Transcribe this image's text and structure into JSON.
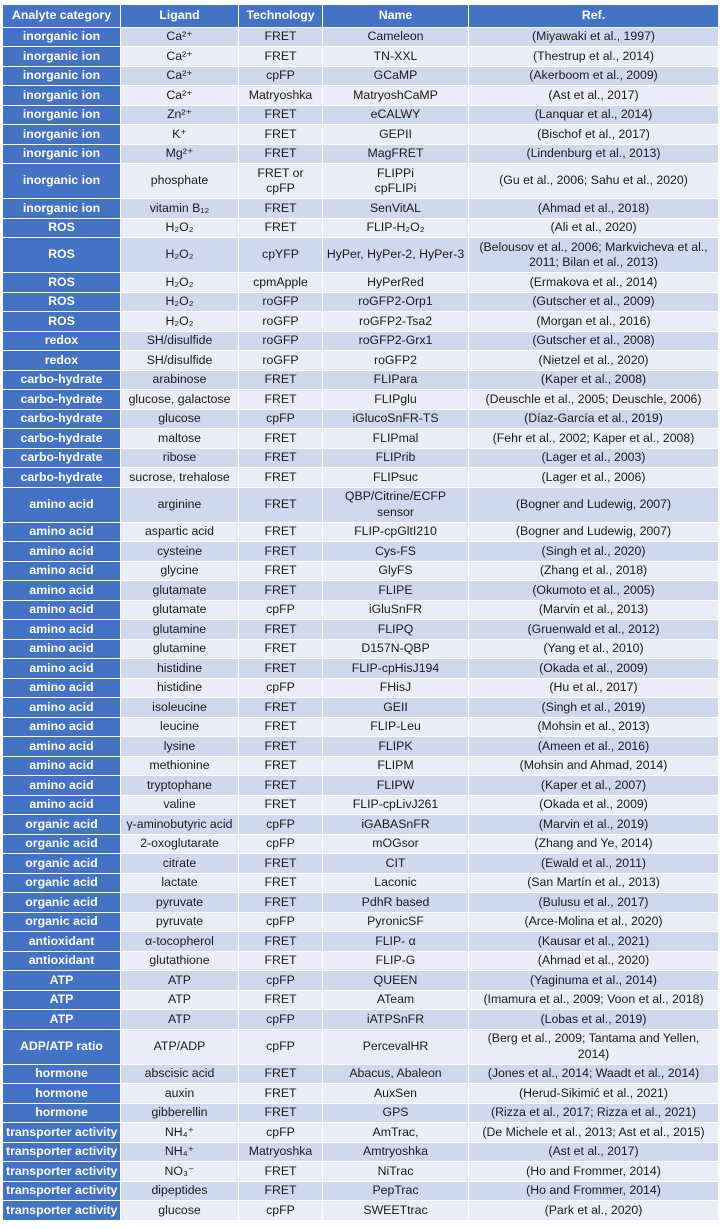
{
  "table": {
    "columns": [
      "Analyte category",
      "Ligand",
      "Technology",
      "Name",
      "Ref."
    ],
    "rows": [
      [
        "inorganic ion",
        "Ca²⁺",
        "FRET",
        "Cameleon",
        "(Miyawaki et al., 1997)"
      ],
      [
        "inorganic ion",
        "Ca²⁺",
        "FRET",
        "TN-XXL",
        "(Thestrup et al., 2014)"
      ],
      [
        "inorganic ion",
        "Ca²⁺",
        "cpFP",
        "GCaMP",
        "(Akerboom et al., 2009)"
      ],
      [
        "inorganic ion",
        "Ca²⁺",
        "Matryoshka",
        "MatryoshCaMP",
        "(Ast et al., 2017)"
      ],
      [
        "inorganic ion",
        "Zn²⁺",
        "FRET",
        "eCALWY",
        "(Lanquar et al., 2014)"
      ],
      [
        "inorganic ion",
        "K⁺",
        "FRET",
        "GEPII",
        "(Bischof et al., 2017)"
      ],
      [
        "inorganic ion",
        "Mg²⁺",
        "FRET",
        "MagFRET",
        "(Lindenburg et al., 2013)"
      ],
      [
        "inorganic ion",
        "phosphate",
        "FRET or cpFP",
        "FLIPPi\ncpFLIPi",
        "(Gu et al., 2006; Sahu et al., 2020)"
      ],
      [
        "inorganic ion",
        "vitamin B₁₂",
        "FRET",
        "SenVitAL",
        "(Ahmad et al., 2018)"
      ],
      [
        "ROS",
        "H₂O₂",
        "FRET",
        "FLIP-H₂O₂",
        "(Ali et al., 2020)"
      ],
      [
        "ROS",
        "H₂O₂",
        "cpYFP",
        "HyPer, HyPer-2, HyPer-3",
        "(Belousov et al., 2006; Markvicheva et al., 2011; Bilan et al., 2013)"
      ],
      [
        "ROS",
        "H₂O₂",
        "cpmApple",
        "HyPerRed",
        "(Ermakova et al., 2014)"
      ],
      [
        "ROS",
        "H₂O₂",
        "roGFP",
        "roGFP2-Orp1",
        "(Gutscher et al., 2009)"
      ],
      [
        "ROS",
        "H₂O₂",
        "roGFP",
        "roGFP2-Tsa2",
        "(Morgan et al., 2016)"
      ],
      [
        "redox",
        "SH/disulfide",
        "roGFP",
        "roGFP2-Grx1",
        "(Gutscher et al., 2008)"
      ],
      [
        "redox",
        "SH/disulfide",
        "roGFP",
        "roGFP2",
        "(Nietzel et al., 2020)"
      ],
      [
        "carbo-hydrate",
        "arabinose",
        "FRET",
        "FLIPara",
        "(Kaper et al., 2008)"
      ],
      [
        "carbo-hydrate",
        "glucose, galactose",
        "FRET",
        "FLIPglu",
        "(Deuschle et al., 2005; Deuschle, 2006)"
      ],
      [
        "carbo-hydrate",
        "glucose",
        "cpFP",
        "iGlucoSnFR-TS",
        "(Díaz-García et al., 2019)"
      ],
      [
        "carbo-hydrate",
        "maltose",
        "FRET",
        "FLIPmal",
        "(Fehr et al., 2002; Kaper et al., 2008)"
      ],
      [
        "carbo-hydrate",
        "ribose",
        "FRET",
        "FLIPrib",
        "(Lager et al., 2003)"
      ],
      [
        "carbo-hydrate",
        "sucrose, trehalose",
        "FRET",
        "FLIPsuc",
        "(Lager et al., 2006)"
      ],
      [
        "amino acid",
        "arginine",
        "FRET",
        "QBP/Citrine/ECFP sensor",
        "(Bogner and Ludewig, 2007)"
      ],
      [
        "amino acid",
        "aspartic acid",
        "FRET",
        "FLIP-cpGltI210",
        "(Bogner and Ludewig, 2007)"
      ],
      [
        "amino acid",
        "cysteine",
        "FRET",
        "Cys-FS",
        "(Singh et al., 2020)"
      ],
      [
        "amino acid",
        "glycine",
        "FRET",
        "GlyFS",
        "(Zhang et al., 2018)"
      ],
      [
        "amino acid",
        "glutamate",
        "FRET",
        "FLIPE",
        "(Okumoto et al., 2005)"
      ],
      [
        "amino acid",
        "glutamate",
        "cpFP",
        "iGluSnFR",
        "(Marvin et al., 2013)"
      ],
      [
        "amino acid",
        "glutamine",
        "FRET",
        "FLIPQ",
        "(Gruenwald et al., 2012)"
      ],
      [
        "amino acid",
        "glutamine",
        "FRET",
        "D157N-QBP",
        "(Yang et al., 2010)"
      ],
      [
        "amino acid",
        "histidine",
        "FRET",
        "FLIP-cpHisJ194",
        "(Okada et al., 2009)"
      ],
      [
        "amino acid",
        "histidine",
        "cpFP",
        "FHisJ",
        "(Hu et al., 2017)"
      ],
      [
        "amino acid",
        "isoleucine",
        "FRET",
        "GEII",
        "(Singh et al., 2019)"
      ],
      [
        "amino acid",
        "leucine",
        "FRET",
        "FLIP-Leu",
        "(Mohsin et al., 2013)"
      ],
      [
        "amino acid",
        "lysine",
        "FRET",
        "FLIPK",
        "(Ameen et al., 2016)"
      ],
      [
        "amino acid",
        "methionine",
        "FRET",
        "FLIPM",
        "(Mohsin and Ahmad, 2014)"
      ],
      [
        "amino acid",
        "tryptophane",
        "FRET",
        "FLIPW",
        "(Kaper et al., 2007)"
      ],
      [
        "amino acid",
        "valine",
        "FRET",
        "FLIP-cpLivJ261",
        "(Okada et al., 2009)"
      ],
      [
        "organic acid",
        "γ-aminobutyric acid",
        "cpFP",
        "iGABASnFR",
        "(Marvin et al., 2019)"
      ],
      [
        "organic acid",
        "2-oxoglutarate",
        "cpFP",
        "mOGsor",
        "(Zhang and Ye, 2014)"
      ],
      [
        "organic acid",
        "citrate",
        "FRET",
        "CIT",
        "(Ewald et al., 2011)"
      ],
      [
        "organic acid",
        "lactate",
        "FRET",
        "Laconic",
        "(San Martín et al., 2013)"
      ],
      [
        "organic acid",
        "pyruvate",
        "FRET",
        "PdhR based",
        "(Bulusu et al., 2017)"
      ],
      [
        "organic acid",
        "pyruvate",
        "cpFP",
        "PyronicSF",
        "(Arce-Molina et al., 2020)"
      ],
      [
        "antioxidant",
        "α-tocopherol",
        "FRET",
        "FLIP- α",
        "(Kausar et al., 2021)"
      ],
      [
        "antioxidant",
        "glutathione",
        "FRET",
        "FLIP-G",
        "(Ahmad et al., 2020)"
      ],
      [
        "ATP",
        "ATP",
        "cpFP",
        "QUEEN",
        "(Yaginuma et al., 2014)"
      ],
      [
        "ATP",
        "ATP",
        "FRET",
        "ATeam",
        "(Imamura et al., 2009; Voon et al., 2018)"
      ],
      [
        "ATP",
        "ATP",
        "cpFP",
        "iATPSnFR",
        "(Lobas et al., 2019)"
      ],
      [
        "ADP/ATP ratio",
        "ATP/ADP",
        "cpFP",
        "PercevalHR",
        "(Berg et al., 2009; Tantama and Yellen, 2014)"
      ],
      [
        "hormone",
        "abscisic acid",
        "FRET",
        "Abacus, Abaleon",
        "(Jones et al., 2014; Waadt et al., 2014)"
      ],
      [
        "hormone",
        "auxin",
        "FRET",
        "AuxSen",
        "(Herud-Sikimić et al., 2021)"
      ],
      [
        "hormone",
        "gibberellin",
        "FRET",
        "GPS",
        "(Rizza et al., 2017; Rizza et al., 2021)"
      ],
      [
        "transporter activity",
        "NH₄⁺",
        "cpFP",
        "AmTrac,",
        "(De Michele et al., 2013; Ast et al., 2015)"
      ],
      [
        "transporter activity",
        "NH₄⁺",
        "Matryoshka",
        "Amtryoshka",
        "(Ast et al., 2017)"
      ],
      [
        "transporter activity",
        "NO₃⁻",
        "FRET",
        "NiTrac",
        "(Ho and Frommer, 2014)"
      ],
      [
        "transporter activity",
        "dipeptides",
        "FRET",
        "PepTrac",
        "(Ho and Frommer, 2014)"
      ],
      [
        "transporter activity",
        "glucose",
        "cpFP",
        "SWEETtrac",
        "(Park et al., 2020)"
      ]
    ]
  }
}
